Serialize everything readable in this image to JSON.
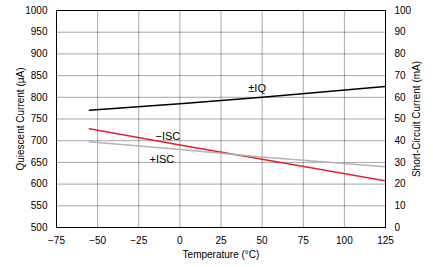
{
  "chart_data": {
    "type": "line",
    "x_label": "Temperature (°C)",
    "y_label": "Quiescent Current (µA)",
    "y2_label": "Short-Circuit Current (mA)",
    "x": [
      -55,
      0,
      50,
      125
    ],
    "series": [
      {
        "name": "±IQ",
        "color": "#000000",
        "axis": "y",
        "values": [
          770,
          785,
          800,
          825
        ]
      },
      {
        "name": "−ISC",
        "color": "#e8202a",
        "axis": "y2",
        "values": [
          45.5,
          38,
          31.5,
          21.5
        ]
      },
      {
        "name": "+ISC",
        "color": "#b4b4b4",
        "axis": "y2",
        "values": [
          39.5,
          36,
          32.5,
          28
        ]
      }
    ],
    "xlim": [
      -75,
      125
    ],
    "xticks": [
      -75,
      -50,
      -25,
      0,
      25,
      50,
      75,
      100,
      125
    ],
    "ylim": [
      500,
      1000
    ],
    "yticks": [
      500,
      550,
      600,
      650,
      700,
      750,
      800,
      850,
      900,
      950,
      1000
    ],
    "y2lim": [
      0,
      100
    ],
    "y2ticks": [
      0,
      10,
      20,
      30,
      40,
      50,
      60,
      70,
      80,
      90,
      100
    ],
    "grid": true
  }
}
